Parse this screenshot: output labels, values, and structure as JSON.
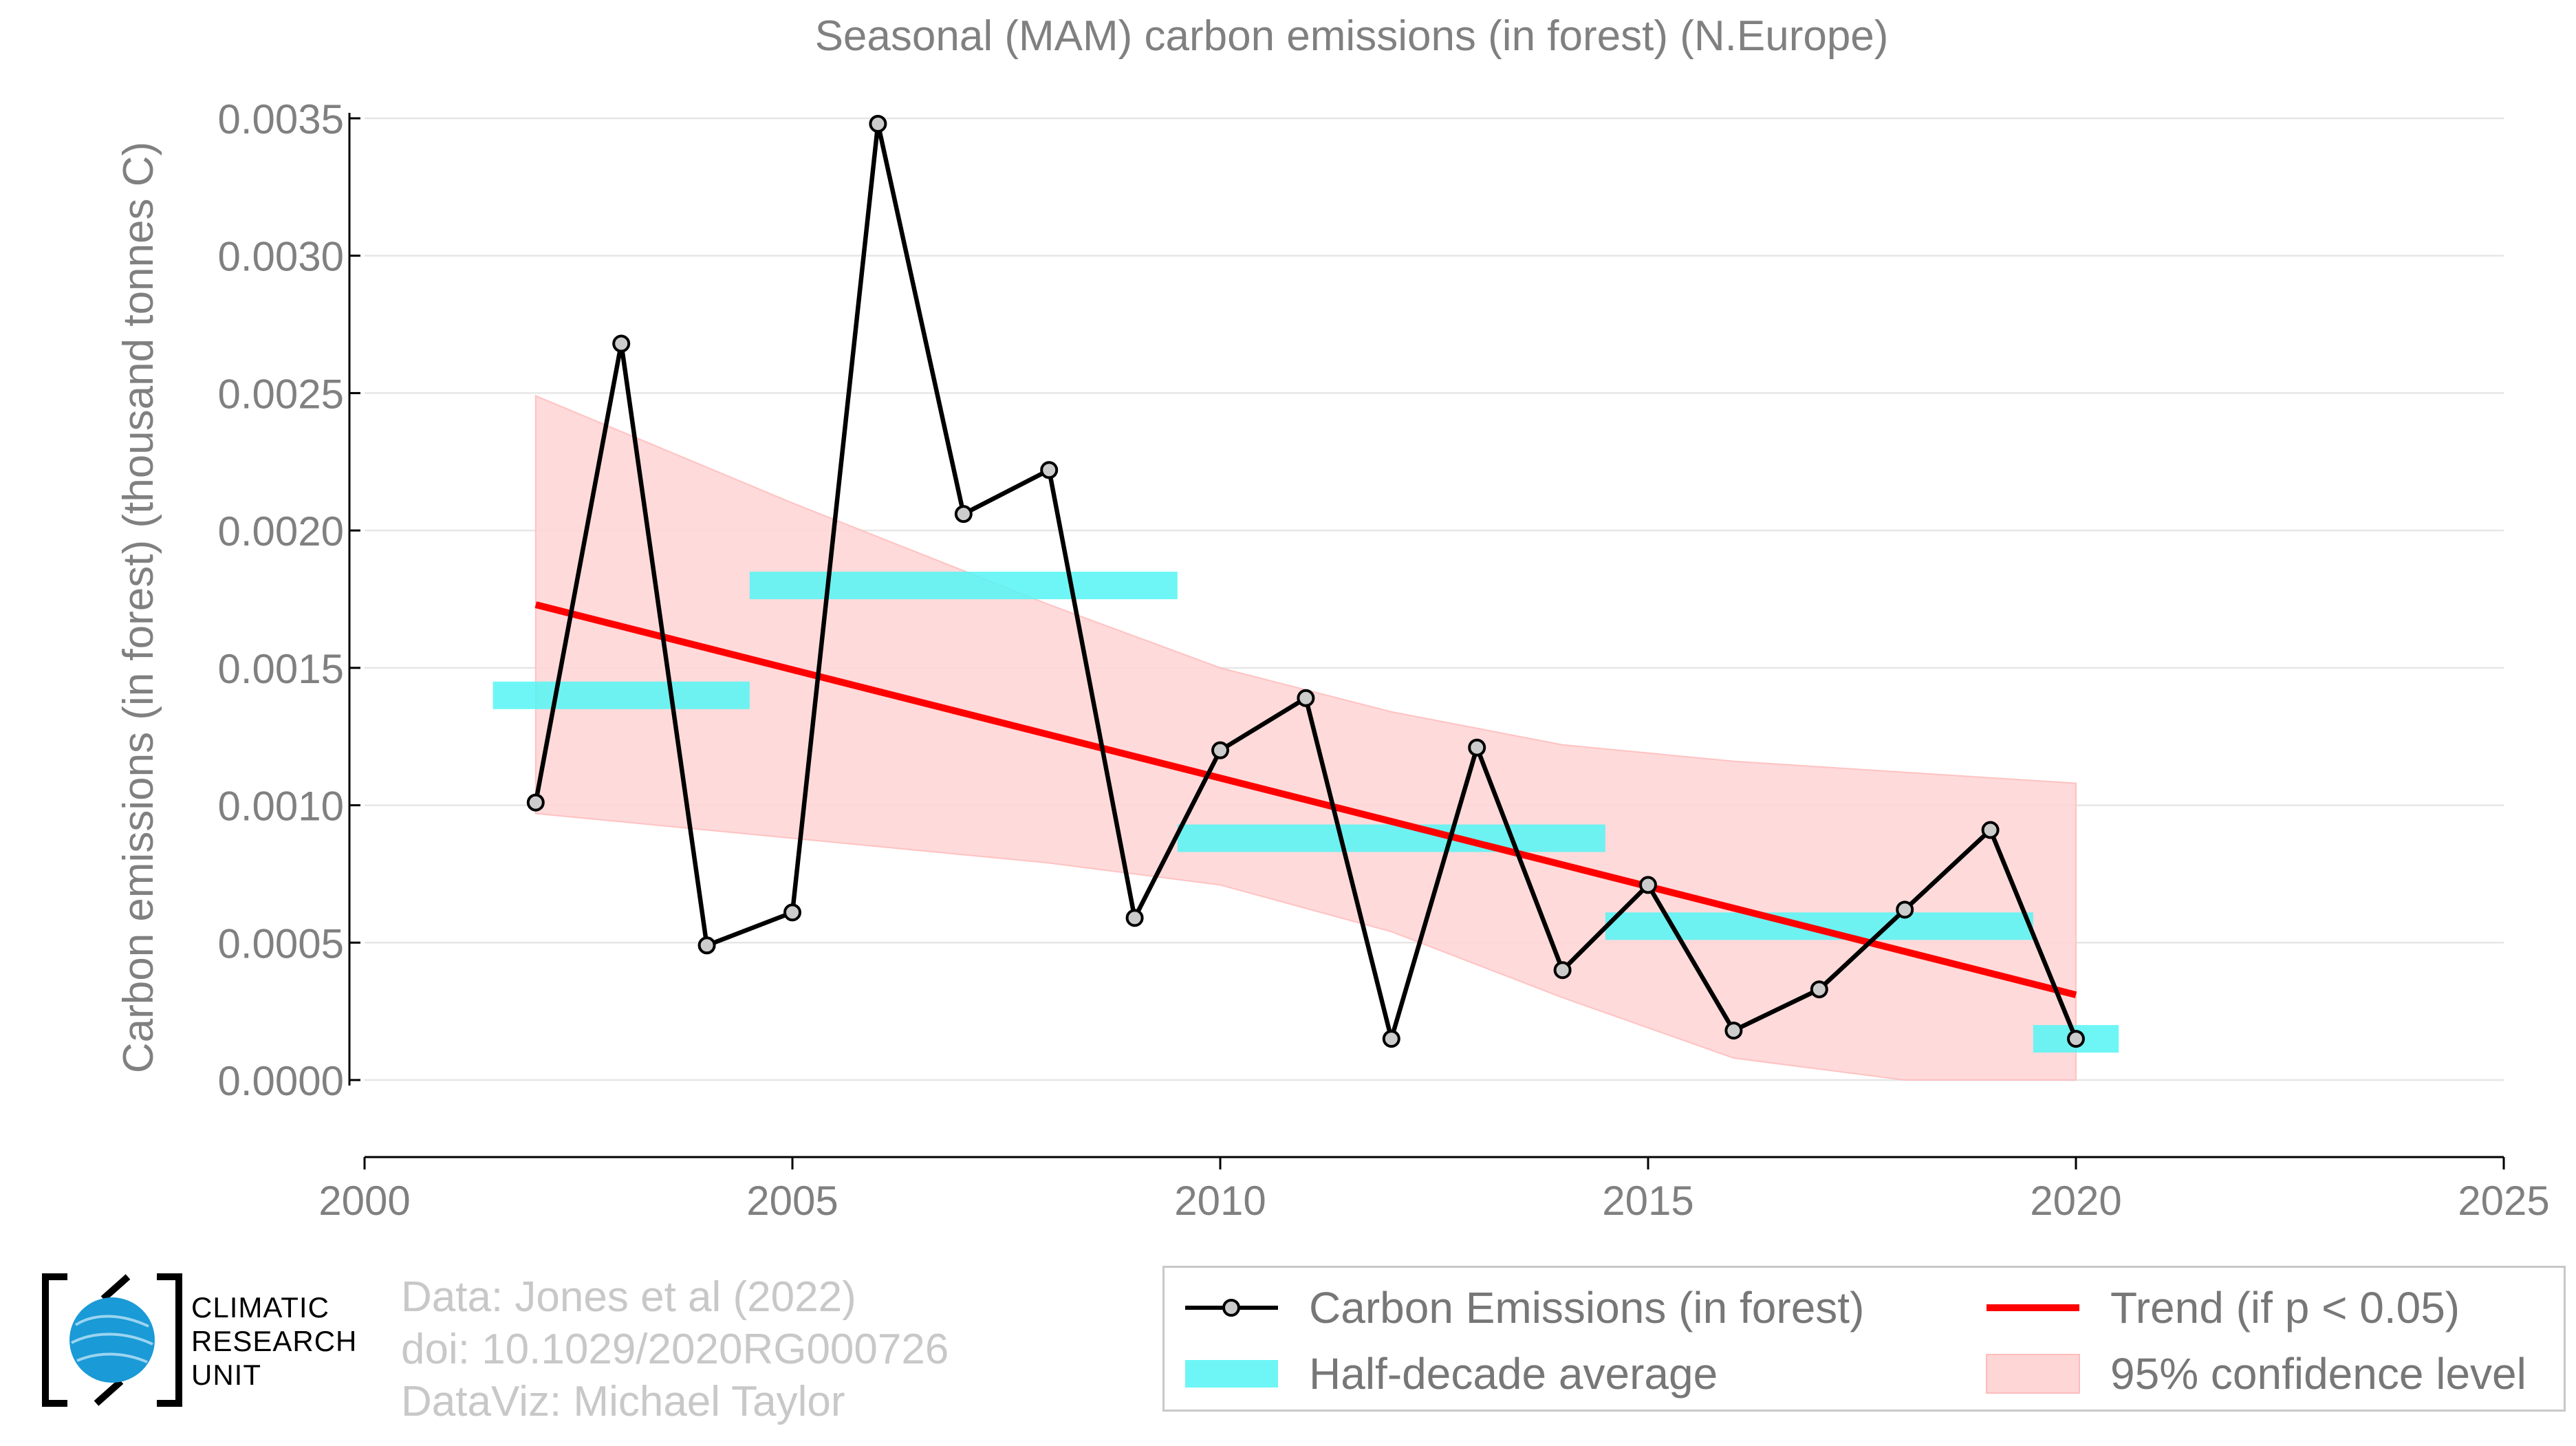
{
  "chart_data": {
    "type": "line",
    "title": "Seasonal (MAM) carbon emissions (in forest) (N.Europe)",
    "ylabel": "Carbon emissions (in forest) (thousand tonnes C)",
    "xlabel": "",
    "xlim": [
      2000,
      2025
    ],
    "ylim": [
      0.0,
      0.0035
    ],
    "x_ticks": [
      "2000",
      "2005",
      "2010",
      "2015",
      "2020",
      "2025"
    ],
    "y_ticks": [
      "0.0000",
      "0.0005",
      "0.0010",
      "0.0015",
      "0.0020",
      "0.0025",
      "0.0030",
      "0.0035"
    ],
    "grid": true,
    "series": [
      {
        "name": "Carbon Emissions (in forest)",
        "color": "#000000",
        "marker_color": "#cccccc",
        "x": [
          2002,
          2003,
          2004,
          2005,
          2006,
          2007,
          2008,
          2009,
          2010,
          2011,
          2012,
          2013,
          2014,
          2015,
          2016,
          2017,
          2018,
          2019,
          2020
        ],
        "y": [
          0.00101,
          0.00268,
          0.00049,
          0.00061,
          0.00348,
          0.00206,
          0.00222,
          0.00059,
          0.0012,
          0.00139,
          0.00015,
          0.00121,
          0.0004,
          0.00071,
          0.00018,
          0.00033,
          0.00062,
          0.00091,
          0.00015
        ]
      }
    ],
    "half_decade_average": {
      "name": "Half-decade average",
      "color": "#55f5f5",
      "segments": [
        {
          "x0": 2001.5,
          "x1": 2004.5,
          "y": 0.0014
        },
        {
          "x0": 2004.5,
          "x1": 2009.5,
          "y": 0.0018
        },
        {
          "x0": 2009.5,
          "x1": 2014.5,
          "y": 0.00088
        },
        {
          "x0": 2014.5,
          "x1": 2019.5,
          "y": 0.00056
        },
        {
          "x0": 2019.5,
          "x1": 2020.5,
          "y": 0.00015
        }
      ]
    },
    "trend": {
      "name": "Trend (if p < 0.05)",
      "color": "#ff0000",
      "x": [
        2002,
        2020
      ],
      "y": [
        0.00173,
        0.00031
      ]
    },
    "confidence_band": {
      "name": "95% confidence level",
      "color": "#ffd6d6",
      "x": [
        2002,
        2005,
        2008,
        2010,
        2012,
        2014,
        2016,
        2018,
        2020
      ],
      "upper": [
        0.00249,
        0.0021,
        0.00173,
        0.0015,
        0.00134,
        0.00122,
        0.00116,
        0.00112,
        0.00108
      ],
      "lower": [
        0.00097,
        0.00088,
        0.00079,
        0.00071,
        0.00054,
        0.0003,
        8e-05,
        0.0,
        0.0
      ]
    },
    "legend_position": "bottom-right"
  },
  "footer": {
    "line1": "Data: Jones et al (2022)",
    "line2": "doi: 10.1029/2020RG000726",
    "line3": "DataViz: Michael Taylor"
  },
  "logo": {
    "line1": "CLIMATIC",
    "line2": "RESEARCH",
    "line3": "UNIT"
  },
  "legend": {
    "emissions": "Carbon Emissions (in forest)",
    "average": "Half-decade average",
    "trend": "Trend (if p < 0.05)",
    "confidence": "95% confidence level"
  },
  "colors": {
    "text_gray": "#808080",
    "grid": "#e6e6e6",
    "logo_blue": "#1a9ad6"
  }
}
